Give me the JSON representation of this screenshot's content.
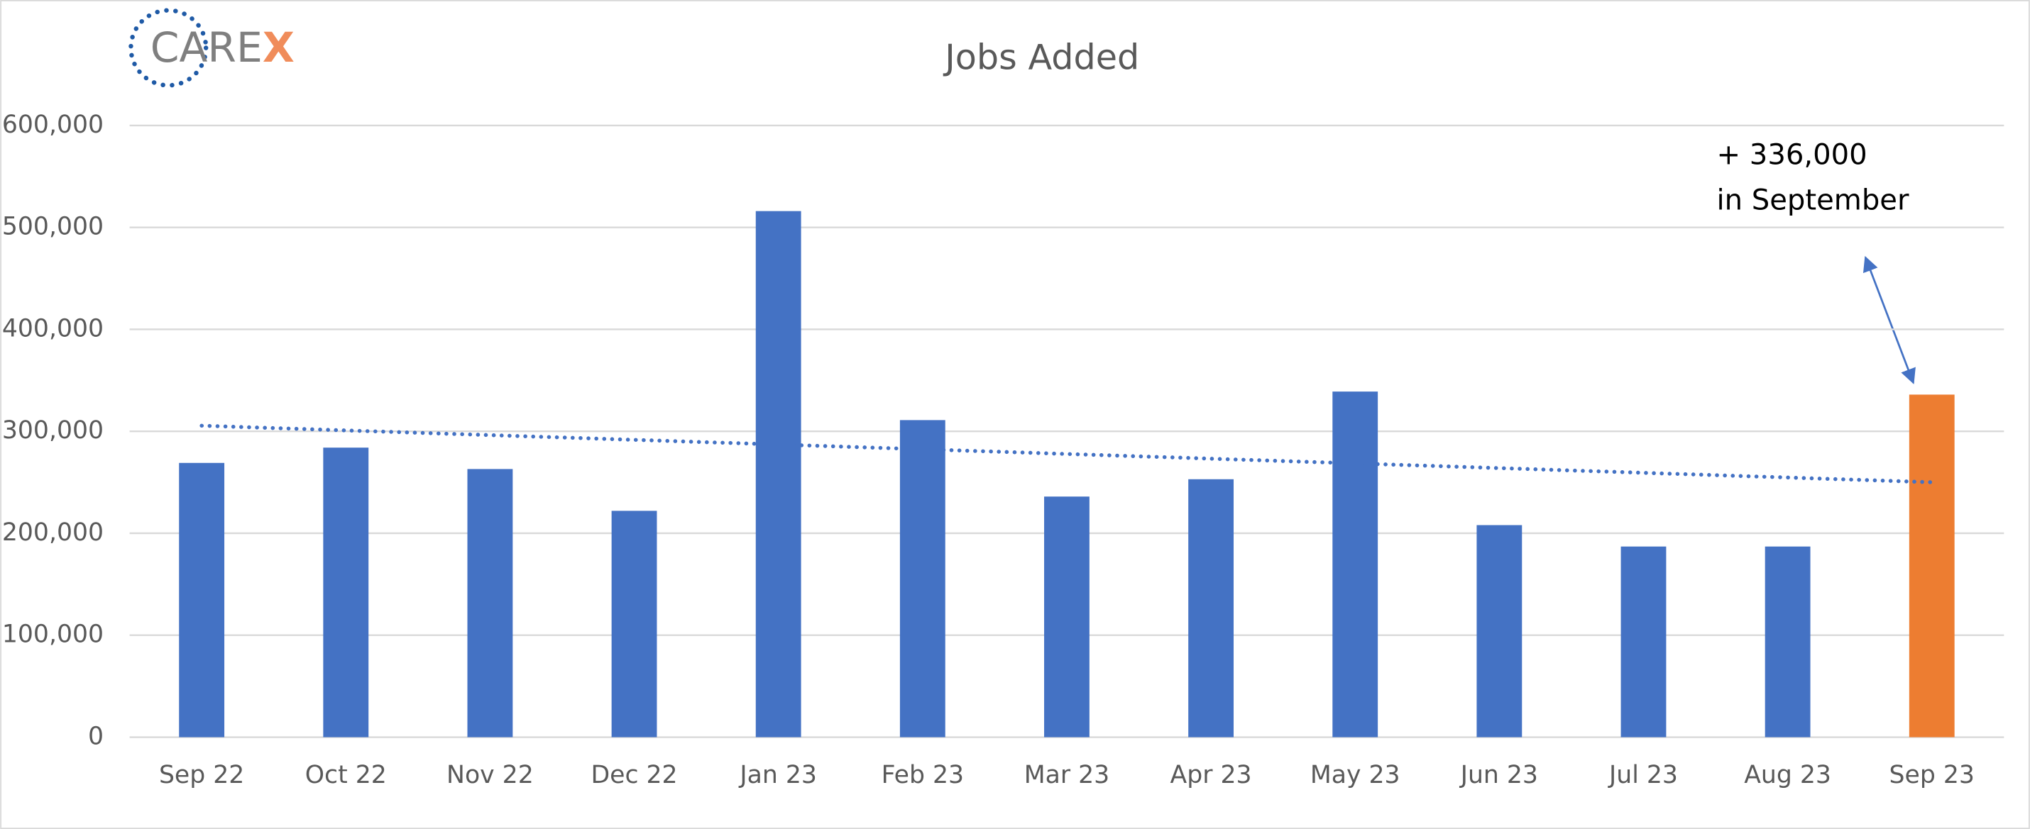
{
  "chart_data": {
    "type": "bar",
    "title": "Jobs Added",
    "logo": {
      "text": "CARE",
      "accent": "X"
    },
    "categories": [
      "Sep 22",
      "Oct 22",
      "Nov 22",
      "Dec 22",
      "Jan 23",
      "Feb 23",
      "Mar 23",
      "Apr 23",
      "May 23",
      "Jun 23",
      "Jul 23",
      "Aug 23",
      "Sep 23"
    ],
    "values": [
      269000,
      284000,
      263000,
      222000,
      516000,
      311000,
      236000,
      253000,
      339000,
      208000,
      187000,
      187000,
      336000
    ],
    "colors": [
      "#4472c4",
      "#4472c4",
      "#4472c4",
      "#4472c4",
      "#4472c4",
      "#4472c4",
      "#4472c4",
      "#4472c4",
      "#4472c4",
      "#4472c4",
      "#4472c4",
      "#4472c4",
      "#ed7d31"
    ],
    "ylim": [
      0,
      600000
    ],
    "yticks": [
      0,
      {
        "value": 100000,
        "label": "100,000"
      },
      {
        "value": 200000,
        "label": "200,000"
      },
      {
        "value": 300000,
        "label": "300,000"
      },
      {
        "value": 400000,
        "label": "400,000"
      },
      {
        "value": 500000,
        "label": "500,000"
      },
      {
        "value": 600000,
        "label": "600,000"
      }
    ],
    "grid": true,
    "trendline": true,
    "trendline_color": "#4472c4",
    "annotation": [
      "+ 336,000",
      "in September"
    ]
  }
}
